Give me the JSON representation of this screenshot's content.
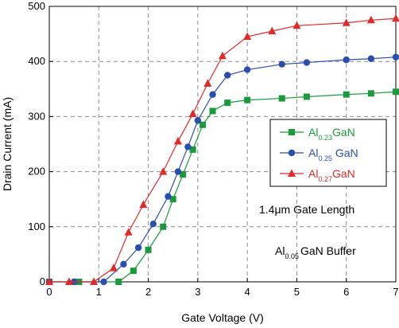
{
  "chart_data": {
    "type": "line",
    "xlabel": "Gate Voltage (V)",
    "ylabel": "Drain Current (mA)",
    "xlim": [
      0,
      7
    ],
    "ylim": [
      0,
      500
    ],
    "xticks": [
      "0",
      "1",
      "2",
      "3",
      "4",
      "5",
      "6",
      "7"
    ],
    "yticks": [
      "0",
      "100",
      "200",
      "300",
      "400",
      "500"
    ],
    "grid": true,
    "legend_placement": "center-right",
    "series": [
      {
        "name_main": "Al",
        "name_sub": "0.23",
        "name_rest": "GaN",
        "color": "#1a9a3a",
        "marker": "square",
        "x": [
          0,
          0.6,
          1.4,
          1.7,
          2.0,
          2.3,
          2.5,
          2.7,
          2.9,
          3.1,
          3.3,
          3.6,
          4.0,
          4.7,
          5.2,
          6.0,
          6.5,
          7.0
        ],
        "y": [
          0,
          0,
          0,
          20,
          58,
          100,
          150,
          195,
          240,
          285,
          310,
          325,
          330,
          333,
          336,
          340,
          342,
          345
        ]
      },
      {
        "name_main": "Al",
        "name_sub": "0.25",
        "name_rest": " GaN",
        "color": "#2a4db0",
        "marker": "circle",
        "x": [
          0,
          0.5,
          1.1,
          1.5,
          1.8,
          2.1,
          2.4,
          2.6,
          2.8,
          3.0,
          3.3,
          3.6,
          4.0,
          4.7,
          5.2,
          6.0,
          6.5,
          7.0
        ],
        "y": [
          0,
          0,
          0,
          32,
          62,
          105,
          155,
          200,
          245,
          293,
          340,
          375,
          385,
          395,
          398,
          403,
          405,
          408
        ]
      },
      {
        "name_main": "Al",
        "name_sub": "0.27",
        "name_rest": "GaN",
        "color": "#e02a2a",
        "marker": "triangle",
        "x": [
          0,
          0.4,
          0.9,
          1.3,
          1.6,
          1.9,
          2.3,
          2.6,
          2.9,
          3.2,
          3.5,
          4.0,
          4.5,
          5.0,
          6.0,
          6.5,
          7.0
        ],
        "y": [
          0,
          0,
          0,
          25,
          90,
          140,
          200,
          255,
          305,
          360,
          410,
          445,
          455,
          465,
          470,
          475,
          478
        ]
      }
    ],
    "annotations": {
      "gate_length": "1.4μm Gate Length",
      "buffer_main": "Al",
      "buffer_sub": "0.05",
      "buffer_rest": "GaN Buffer"
    }
  }
}
